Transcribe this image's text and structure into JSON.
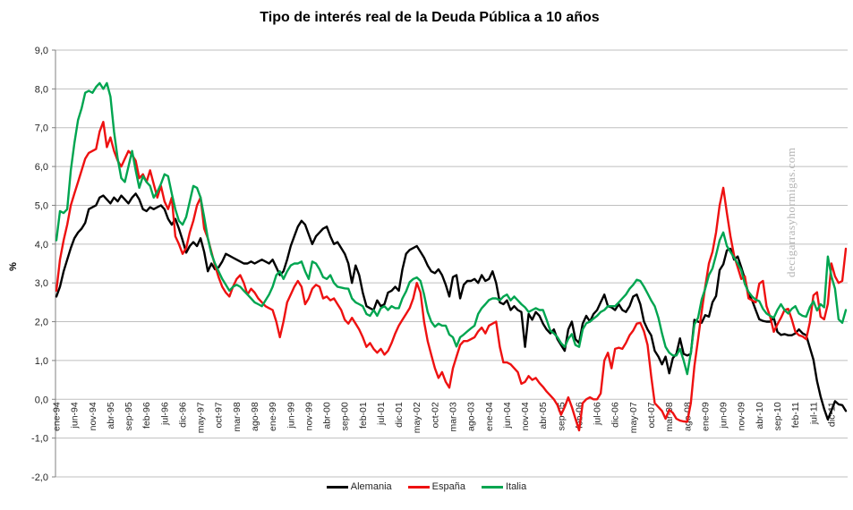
{
  "title": "Tipo de interés real de la Deuda Pública a 10 años",
  "watermark": "decigarrasyhormigas.com",
  "legend": {
    "items": [
      {
        "label": "Alemania",
        "color": "#000000"
      },
      {
        "label": "España",
        "color": "#ee1111"
      },
      {
        "label": "Italia",
        "color": "#00a550"
      }
    ]
  },
  "chart_data": {
    "type": "line",
    "title": "Tipo de interés real de la Deuda Pública a 10 años",
    "ylabel": "%",
    "xlabel": "",
    "ylim": [
      -2.0,
      9.0
    ],
    "y_tick_step": 1.0,
    "y_tick_labels": [
      "9,0",
      "8,0",
      "7,0",
      "6,0",
      "5,0",
      "4,0",
      "3,0",
      "2,0",
      "1,0",
      "0,0",
      "-1,0",
      "-2,0"
    ],
    "grid": true,
    "legend_position": "bottom",
    "x_unit": "month",
    "x_start": "ene-94",
    "x_tick_every": 5,
    "x_tick_labels": [
      "ene-94",
      "jun-94",
      "nov-94",
      "abr-95",
      "sep-95",
      "feb-96",
      "jul-96",
      "dic-96",
      "may-97",
      "oct-97",
      "mar-98",
      "ago-98",
      "ene-99",
      "jun-99",
      "nov-99",
      "abr-00",
      "sep-00",
      "feb-01",
      "jul-01",
      "dic-01",
      "may-02",
      "oct-02",
      "mar-03",
      "ago-03",
      "ene-04",
      "jun-04",
      "nov-04",
      "abr-05",
      "sep-05",
      "feb-06",
      "jul-06",
      "dic-06",
      "may-07",
      "oct-07",
      "mar-08",
      "ago-08",
      "ene-09",
      "jun-09",
      "nov-09",
      "abr-10",
      "sep-10",
      "feb-11",
      "jul-11",
      "dic-11"
    ],
    "series": [
      {
        "name": "Alemania",
        "color": "#000000",
        "values": [
          2.65,
          2.9,
          3.3,
          3.6,
          3.9,
          4.15,
          4.3,
          4.4,
          4.55,
          4.9,
          4.95,
          5.0,
          5.2,
          5.25,
          5.15,
          5.05,
          5.2,
          5.1,
          5.25,
          5.15,
          5.05,
          5.2,
          5.3,
          5.15,
          4.9,
          4.85,
          4.95,
          4.9,
          4.95,
          5.0,
          4.9,
          4.65,
          4.5,
          4.65,
          4.4,
          4.1,
          3.78,
          3.95,
          4.05,
          3.95,
          4.15,
          3.8,
          3.3,
          3.5,
          3.35,
          3.4,
          3.55,
          3.75,
          3.7,
          3.65,
          3.6,
          3.55,
          3.5,
          3.5,
          3.55,
          3.5,
          3.55,
          3.6,
          3.55,
          3.5,
          3.6,
          3.4,
          3.2,
          3.3,
          3.6,
          3.95,
          4.2,
          4.45,
          4.6,
          4.5,
          4.25,
          4.0,
          4.2,
          4.3,
          4.4,
          4.45,
          4.2,
          4.0,
          4.05,
          3.9,
          3.75,
          3.5,
          3.0,
          3.45,
          3.2,
          2.75,
          2.4,
          2.35,
          2.3,
          2.55,
          2.4,
          2.45,
          2.75,
          2.8,
          2.9,
          2.8,
          3.35,
          3.75,
          3.85,
          3.9,
          3.95,
          3.8,
          3.65,
          3.45,
          3.3,
          3.25,
          3.35,
          3.2,
          2.95,
          2.65,
          3.15,
          3.2,
          2.6,
          2.95,
          3.05,
          3.05,
          3.1,
          3.0,
          3.2,
          3.05,
          3.1,
          3.3,
          3.0,
          2.5,
          2.45,
          2.55,
          2.3,
          2.4,
          2.3,
          2.25,
          1.35,
          2.2,
          2.05,
          2.25,
          2.15,
          1.95,
          1.8,
          1.7,
          1.8,
          1.55,
          1.4,
          1.25,
          1.8,
          2.0,
          1.55,
          1.45,
          1.95,
          2.15,
          2.0,
          2.2,
          2.3,
          2.5,
          2.7,
          2.4,
          2.37,
          2.3,
          2.45,
          2.3,
          2.25,
          2.4,
          2.65,
          2.7,
          2.45,
          2.0,
          1.8,
          1.65,
          1.25,
          1.1,
          0.9,
          1.1,
          0.67,
          1.06,
          1.17,
          1.57,
          1.17,
          1.13,
          1.17,
          2.05,
          2.0,
          1.97,
          2.17,
          2.13,
          2.5,
          2.66,
          3.33,
          3.48,
          3.84,
          3.88,
          3.6,
          3.68,
          3.4,
          3.1,
          2.7,
          2.55,
          2.3,
          2.06,
          2.02,
          2.0,
          2.0,
          2.1,
          1.74,
          1.66,
          1.68,
          1.65,
          1.65,
          1.7,
          1.8,
          1.7,
          1.65,
          1.34,
          1.02,
          0.47,
          0.07,
          -0.25,
          -0.52,
          -0.29,
          -0.05,
          -0.13,
          -0.15,
          -0.3
        ]
      },
      {
        "name": "España",
        "color": "#ee1111",
        "values": [
          2.8,
          3.6,
          4.1,
          4.5,
          5.0,
          5.3,
          5.6,
          5.9,
          6.2,
          6.35,
          6.4,
          6.45,
          6.9,
          7.15,
          6.5,
          6.75,
          6.4,
          6.15,
          6.0,
          6.2,
          6.4,
          6.3,
          6.15,
          5.7,
          5.8,
          5.6,
          5.9,
          5.55,
          5.2,
          5.5,
          5.1,
          4.9,
          5.2,
          4.2,
          4.0,
          3.75,
          3.9,
          4.3,
          4.6,
          5.0,
          5.2,
          4.4,
          4.15,
          3.8,
          3.45,
          3.15,
          2.9,
          2.75,
          2.65,
          2.9,
          3.1,
          3.2,
          3.0,
          2.7,
          2.85,
          2.75,
          2.6,
          2.5,
          2.4,
          2.35,
          2.3,
          2.0,
          1.6,
          2.0,
          2.5,
          2.7,
          2.9,
          3.05,
          2.9,
          2.45,
          2.6,
          2.85,
          2.95,
          2.9,
          2.6,
          2.65,
          2.55,
          2.6,
          2.45,
          2.3,
          2.05,
          1.95,
          2.1,
          1.95,
          1.8,
          1.6,
          1.35,
          1.45,
          1.3,
          1.2,
          1.3,
          1.15,
          1.25,
          1.45,
          1.7,
          1.9,
          2.05,
          2.2,
          2.35,
          2.6,
          3.0,
          2.75,
          2.0,
          1.5,
          1.15,
          0.8,
          0.55,
          0.7,
          0.45,
          0.3,
          0.8,
          1.1,
          1.4,
          1.5,
          1.5,
          1.55,
          1.6,
          1.75,
          1.85,
          1.7,
          1.9,
          1.95,
          2.0,
          1.35,
          0.95,
          0.95,
          0.9,
          0.8,
          0.7,
          0.4,
          0.45,
          0.6,
          0.5,
          0.55,
          0.42,
          0.32,
          0.2,
          0.1,
          0.0,
          -0.15,
          -0.4,
          -0.2,
          0.05,
          -0.2,
          -0.5,
          -0.8,
          -0.1,
          0.0,
          0.05,
          0.0,
          0.0,
          0.15,
          1.0,
          1.2,
          0.8,
          1.3,
          1.33,
          1.3,
          1.45,
          1.65,
          1.77,
          1.95,
          1.97,
          1.75,
          1.4,
          0.6,
          -0.1,
          -0.2,
          -0.3,
          -0.5,
          -0.27,
          -0.35,
          -0.5,
          -0.55,
          -0.57,
          -0.58,
          -0.1,
          0.85,
          1.55,
          2.25,
          2.9,
          3.5,
          3.8,
          4.3,
          5.0,
          5.45,
          4.8,
          4.2,
          3.7,
          3.4,
          3.1,
          3.17,
          2.6,
          2.55,
          2.5,
          2.98,
          3.05,
          2.4,
          2.13,
          1.74,
          1.93,
          2.1,
          2.3,
          2.33,
          2.06,
          1.74,
          1.65,
          1.62,
          1.55,
          1.97,
          2.68,
          2.76,
          2.13,
          2.06,
          2.46,
          3.5,
          3.17,
          3.0,
          3.05,
          3.88
        ]
      },
      {
        "name": "Italia",
        "color": "#00a550",
        "values": [
          4.1,
          4.85,
          4.8,
          4.9,
          5.9,
          6.6,
          7.2,
          7.5,
          7.9,
          7.95,
          7.9,
          8.05,
          8.15,
          8.0,
          8.15,
          7.8,
          6.9,
          6.2,
          5.7,
          5.6,
          6.0,
          6.4,
          5.9,
          5.45,
          5.75,
          5.6,
          5.5,
          5.2,
          5.35,
          5.55,
          5.8,
          5.75,
          5.3,
          4.9,
          4.6,
          4.5,
          4.7,
          5.1,
          5.5,
          5.45,
          5.2,
          4.7,
          4.15,
          3.75,
          3.5,
          3.3,
          3.1,
          2.95,
          2.8,
          2.9,
          2.95,
          2.9,
          2.8,
          2.7,
          2.6,
          2.5,
          2.45,
          2.4,
          2.55,
          2.7,
          2.9,
          3.2,
          3.3,
          3.1,
          3.3,
          3.45,
          3.5,
          3.5,
          3.55,
          3.3,
          3.1,
          3.55,
          3.5,
          3.35,
          3.15,
          3.1,
          3.2,
          3.0,
          2.9,
          2.88,
          2.86,
          2.85,
          2.6,
          2.5,
          2.45,
          2.4,
          2.2,
          2.15,
          2.3,
          2.15,
          2.35,
          2.4,
          2.3,
          2.4,
          2.35,
          2.35,
          2.6,
          2.78,
          3.02,
          3.1,
          3.14,
          3.05,
          2.7,
          2.25,
          2.0,
          1.87,
          1.95,
          1.9,
          1.9,
          1.67,
          1.6,
          1.36,
          1.6,
          1.67,
          1.75,
          1.83,
          1.9,
          2.2,
          2.35,
          2.45,
          2.56,
          2.6,
          2.6,
          2.55,
          2.65,
          2.7,
          2.55,
          2.65,
          2.55,
          2.45,
          2.37,
          2.25,
          2.3,
          2.35,
          2.3,
          2.3,
          2.05,
          1.77,
          1.7,
          1.6,
          1.45,
          1.35,
          1.56,
          1.68,
          1.4,
          1.35,
          1.8,
          1.96,
          2.0,
          2.08,
          2.15,
          2.25,
          2.3,
          2.4,
          2.4,
          2.4,
          2.5,
          2.6,
          2.7,
          2.85,
          2.95,
          3.08,
          3.05,
          2.9,
          2.73,
          2.55,
          2.4,
          2.1,
          1.7,
          1.35,
          1.2,
          1.13,
          1.13,
          1.3,
          1.0,
          0.65,
          1.2,
          1.93,
          2.1,
          2.57,
          2.85,
          3.2,
          3.37,
          3.72,
          4.1,
          4.3,
          3.95,
          3.8,
          3.65,
          3.5,
          3.33,
          2.97,
          2.77,
          2.65,
          2.57,
          2.53,
          2.33,
          2.21,
          2.15,
          2.1,
          2.3,
          2.45,
          2.3,
          2.21,
          2.33,
          2.4,
          2.21,
          2.15,
          2.13,
          2.37,
          2.53,
          2.29,
          2.45,
          2.37,
          3.68,
          3.17,
          2.85,
          2.06,
          1.97,
          2.3
        ]
      }
    ],
    "style": {
      "gridline_color": "#bfbfbf",
      "axis_color": "#808080",
      "tick_label_color": "#262626",
      "line_width": 2.4
    }
  }
}
